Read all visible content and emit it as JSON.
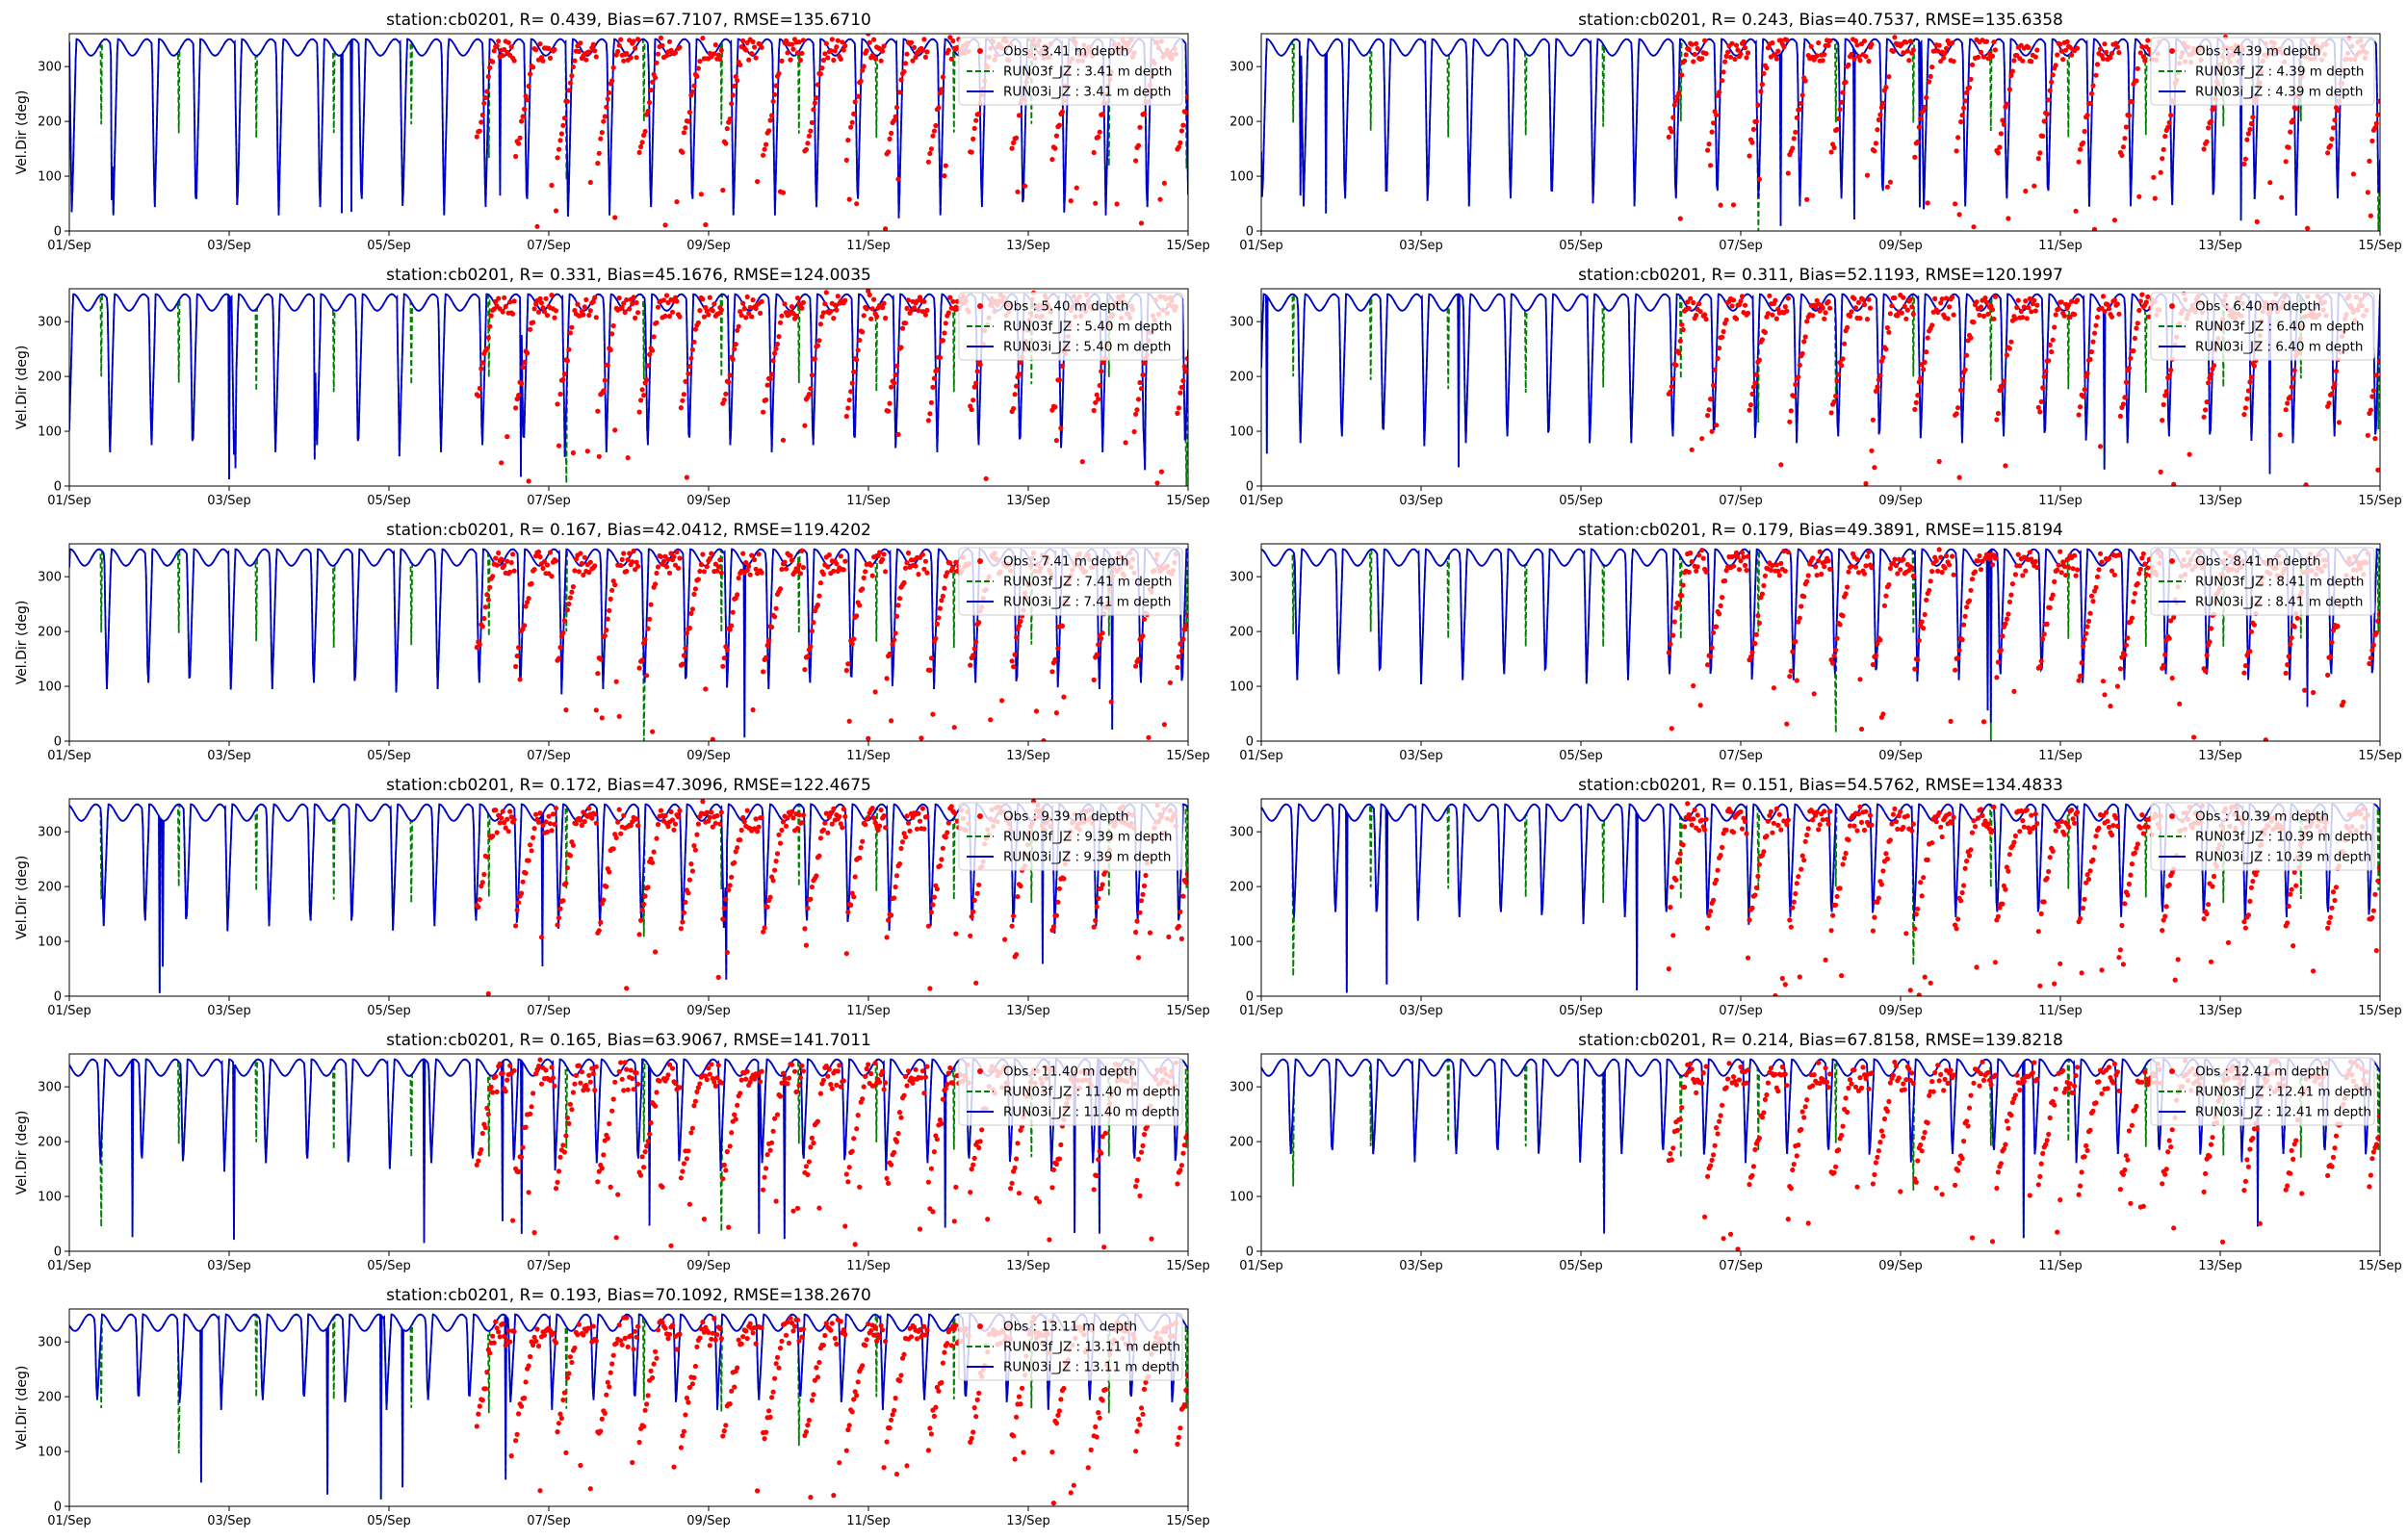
{
  "figure": {
    "background": "#ffffff",
    "layout": "6 rows x 2 columns (11 panels)"
  },
  "colors": {
    "obs": "#ff0000",
    "run03f": "#008000",
    "run03i": "#0000cc",
    "axis": "#000000"
  },
  "chart_data": [
    {
      "type": "line",
      "title": "station:cb0201, R= 0.439, Bias=67.7107, RMSE=135.6710",
      "xlabel": "",
      "ylabel": "Vel.Dir (deg)",
      "xlim": [
        0,
        14
      ],
      "ylim": [
        0,
        360
      ],
      "x_ticks": [
        "01/Sep",
        "03/Sep",
        "05/Sep",
        "07/Sep",
        "09/Sep",
        "11/Sep",
        "13/Sep",
        "15/Sep"
      ],
      "y_ticks": [
        0,
        100,
        200,
        300
      ],
      "legend_position": "top-right",
      "series": [
        {
          "name": "Obs : 3.41 m depth",
          "style": "dots",
          "color": "#ff0000"
        },
        {
          "name": "RUN03f_JZ : 3.41 m depth",
          "style": "dashed",
          "color": "#008000"
        },
        {
          "name": "RUN03i_JZ : 3.41 m depth",
          "style": "solid",
          "color": "#0000cc"
        }
      ]
    },
    {
      "type": "line",
      "title": "station:cb0201, R= 0.243, Bias=40.7537, RMSE=135.6358",
      "xlabel": "",
      "ylabel": "",
      "xlim": [
        0,
        14
      ],
      "ylim": [
        0,
        360
      ],
      "x_ticks": [
        "01/Sep",
        "03/Sep",
        "05/Sep",
        "07/Sep",
        "09/Sep",
        "11/Sep",
        "13/Sep",
        "15/Sep"
      ],
      "y_ticks": [
        0,
        100,
        200,
        300
      ],
      "legend_position": "top-right",
      "series": [
        {
          "name": "Obs : 4.39 m depth",
          "style": "dots",
          "color": "#ff0000"
        },
        {
          "name": "RUN03f_JZ : 4.39 m depth",
          "style": "dashed",
          "color": "#008000"
        },
        {
          "name": "RUN03i_JZ : 4.39 m depth",
          "style": "solid",
          "color": "#0000cc"
        }
      ]
    },
    {
      "type": "line",
      "title": "station:cb0201, R= 0.331, Bias=45.1676, RMSE=124.0035",
      "xlabel": "",
      "ylabel": "Vel.Dir (deg)",
      "xlim": [
        0,
        14
      ],
      "ylim": [
        0,
        360
      ],
      "x_ticks": [
        "01/Sep",
        "03/Sep",
        "05/Sep",
        "07/Sep",
        "09/Sep",
        "11/Sep",
        "13/Sep",
        "15/Sep"
      ],
      "y_ticks": [
        0,
        100,
        200,
        300
      ],
      "legend_position": "top-right",
      "series": [
        {
          "name": "Obs : 5.40 m depth",
          "style": "dots",
          "color": "#ff0000"
        },
        {
          "name": "RUN03f_JZ : 5.40 m depth",
          "style": "dashed",
          "color": "#008000"
        },
        {
          "name": "RUN03i_JZ : 5.40 m depth",
          "style": "solid",
          "color": "#0000cc"
        }
      ]
    },
    {
      "type": "line",
      "title": "station:cb0201, R= 0.311, Bias=52.1193, RMSE=120.1997",
      "xlabel": "",
      "ylabel": "",
      "xlim": [
        0,
        14
      ],
      "ylim": [
        0,
        360
      ],
      "x_ticks": [
        "01/Sep",
        "03/Sep",
        "05/Sep",
        "07/Sep",
        "09/Sep",
        "11/Sep",
        "13/Sep",
        "15/Sep"
      ],
      "y_ticks": [
        0,
        100,
        200,
        300
      ],
      "legend_position": "top-right",
      "series": [
        {
          "name": "Obs : 6.40 m depth",
          "style": "dots",
          "color": "#ff0000"
        },
        {
          "name": "RUN03f_JZ : 6.40 m depth",
          "style": "dashed",
          "color": "#008000"
        },
        {
          "name": "RUN03i_JZ : 6.40 m depth",
          "style": "solid",
          "color": "#0000cc"
        }
      ]
    },
    {
      "type": "line",
      "title": "station:cb0201, R= 0.167, Bias=42.0412, RMSE=119.4202",
      "xlabel": "",
      "ylabel": "Vel.Dir (deg)",
      "xlim": [
        0,
        14
      ],
      "ylim": [
        0,
        360
      ],
      "x_ticks": [
        "01/Sep",
        "03/Sep",
        "05/Sep",
        "07/Sep",
        "09/Sep",
        "11/Sep",
        "13/Sep",
        "15/Sep"
      ],
      "y_ticks": [
        0,
        100,
        200,
        300
      ],
      "legend_position": "top-right",
      "series": [
        {
          "name": "Obs : 7.41 m depth",
          "style": "dots",
          "color": "#ff0000"
        },
        {
          "name": "RUN03f_JZ : 7.41 m depth",
          "style": "dashed",
          "color": "#008000"
        },
        {
          "name": "RUN03i_JZ : 7.41 m depth",
          "style": "solid",
          "color": "#0000cc"
        }
      ]
    },
    {
      "type": "line",
      "title": "station:cb0201, R= 0.179, Bias=49.3891, RMSE=115.8194",
      "xlabel": "",
      "ylabel": "",
      "xlim": [
        0,
        14
      ],
      "ylim": [
        0,
        360
      ],
      "x_ticks": [
        "01/Sep",
        "03/Sep",
        "05/Sep",
        "07/Sep",
        "09/Sep",
        "11/Sep",
        "13/Sep",
        "15/Sep"
      ],
      "y_ticks": [
        0,
        100,
        200,
        300
      ],
      "legend_position": "top-right",
      "series": [
        {
          "name": "Obs : 8.41 m depth",
          "style": "dots",
          "color": "#ff0000"
        },
        {
          "name": "RUN03f_JZ : 8.41 m depth",
          "style": "dashed",
          "color": "#008000"
        },
        {
          "name": "RUN03i_JZ : 8.41 m depth",
          "style": "solid",
          "color": "#0000cc"
        }
      ]
    },
    {
      "type": "line",
      "title": "station:cb0201, R= 0.172, Bias=47.3096, RMSE=122.4675",
      "xlabel": "",
      "ylabel": "Vel.Dir (deg)",
      "xlim": [
        0,
        14
      ],
      "ylim": [
        0,
        360
      ],
      "x_ticks": [
        "01/Sep",
        "03/Sep",
        "05/Sep",
        "07/Sep",
        "09/Sep",
        "11/Sep",
        "13/Sep",
        "15/Sep"
      ],
      "y_ticks": [
        0,
        100,
        200,
        300
      ],
      "legend_position": "top-right",
      "series": [
        {
          "name": "Obs : 9.39 m depth",
          "style": "dots",
          "color": "#ff0000"
        },
        {
          "name": "RUN03f_JZ : 9.39 m depth",
          "style": "dashed",
          "color": "#008000"
        },
        {
          "name": "RUN03i_JZ : 9.39 m depth",
          "style": "solid",
          "color": "#0000cc"
        }
      ]
    },
    {
      "type": "line",
      "title": "station:cb0201, R= 0.151, Bias=54.5762, RMSE=134.4833",
      "xlabel": "",
      "ylabel": "",
      "xlim": [
        0,
        14
      ],
      "ylim": [
        0,
        360
      ],
      "x_ticks": [
        "01/Sep",
        "03/Sep",
        "05/Sep",
        "07/Sep",
        "09/Sep",
        "11/Sep",
        "13/Sep",
        "15/Sep"
      ],
      "y_ticks": [
        0,
        100,
        200,
        300
      ],
      "legend_position": "top-right",
      "series": [
        {
          "name": "Obs : 10.39 m depth",
          "style": "dots",
          "color": "#ff0000"
        },
        {
          "name": "RUN03f_JZ : 10.39 m depth",
          "style": "dashed",
          "color": "#008000"
        },
        {
          "name": "RUN03i_JZ : 10.39 m depth",
          "style": "solid",
          "color": "#0000cc"
        }
      ]
    },
    {
      "type": "line",
      "title": "station:cb0201, R= 0.165, Bias=63.9067, RMSE=141.7011",
      "xlabel": "",
      "ylabel": "Vel.Dir (deg)",
      "xlim": [
        0,
        14
      ],
      "ylim": [
        0,
        360
      ],
      "x_ticks": [
        "01/Sep",
        "03/Sep",
        "05/Sep",
        "07/Sep",
        "09/Sep",
        "11/Sep",
        "13/Sep",
        "15/Sep"
      ],
      "y_ticks": [
        0,
        100,
        200,
        300
      ],
      "legend_position": "top-right",
      "series": [
        {
          "name": "Obs : 11.40 m depth",
          "style": "dots",
          "color": "#ff0000"
        },
        {
          "name": "RUN03f_JZ : 11.40 m depth",
          "style": "dashed",
          "color": "#008000"
        },
        {
          "name": "RUN03i_JZ : 11.40 m depth",
          "style": "solid",
          "color": "#0000cc"
        }
      ]
    },
    {
      "type": "line",
      "title": "station:cb0201, R= 0.214, Bias=67.8158, RMSE=139.8218",
      "xlabel": "",
      "ylabel": "",
      "xlim": [
        0,
        14
      ],
      "ylim": [
        0,
        360
      ],
      "x_ticks": [
        "01/Sep",
        "03/Sep",
        "05/Sep",
        "07/Sep",
        "09/Sep",
        "11/Sep",
        "13/Sep",
        "15/Sep"
      ],
      "y_ticks": [
        0,
        100,
        200,
        300
      ],
      "legend_position": "top-right",
      "series": [
        {
          "name": "Obs : 12.41 m depth",
          "style": "dots",
          "color": "#ff0000"
        },
        {
          "name": "RUN03f_JZ : 12.41 m depth",
          "style": "dashed",
          "color": "#008000"
        },
        {
          "name": "RUN03i_JZ : 12.41 m depth",
          "style": "solid",
          "color": "#0000cc"
        }
      ]
    },
    {
      "type": "line",
      "title": "station:cb0201, R= 0.193, Bias=70.1092, RMSE=138.2670",
      "xlabel": "",
      "ylabel": "Vel.Dir (deg)",
      "xlim": [
        0,
        14
      ],
      "ylim": [
        0,
        360
      ],
      "x_ticks": [
        "01/Sep",
        "03/Sep",
        "05/Sep",
        "07/Sep",
        "09/Sep",
        "11/Sep",
        "13/Sep",
        "15/Sep"
      ],
      "y_ticks": [
        0,
        100,
        200,
        300
      ],
      "legend_position": "top-right",
      "series": [
        {
          "name": "Obs : 13.11 m depth",
          "style": "dots",
          "color": "#ff0000"
        },
        {
          "name": "RUN03f_JZ : 13.11 m depth",
          "style": "dashed",
          "color": "#008000"
        },
        {
          "name": "RUN03i_JZ : 13.11 m depth",
          "style": "solid",
          "color": "#0000cc"
        }
      ]
    }
  ]
}
